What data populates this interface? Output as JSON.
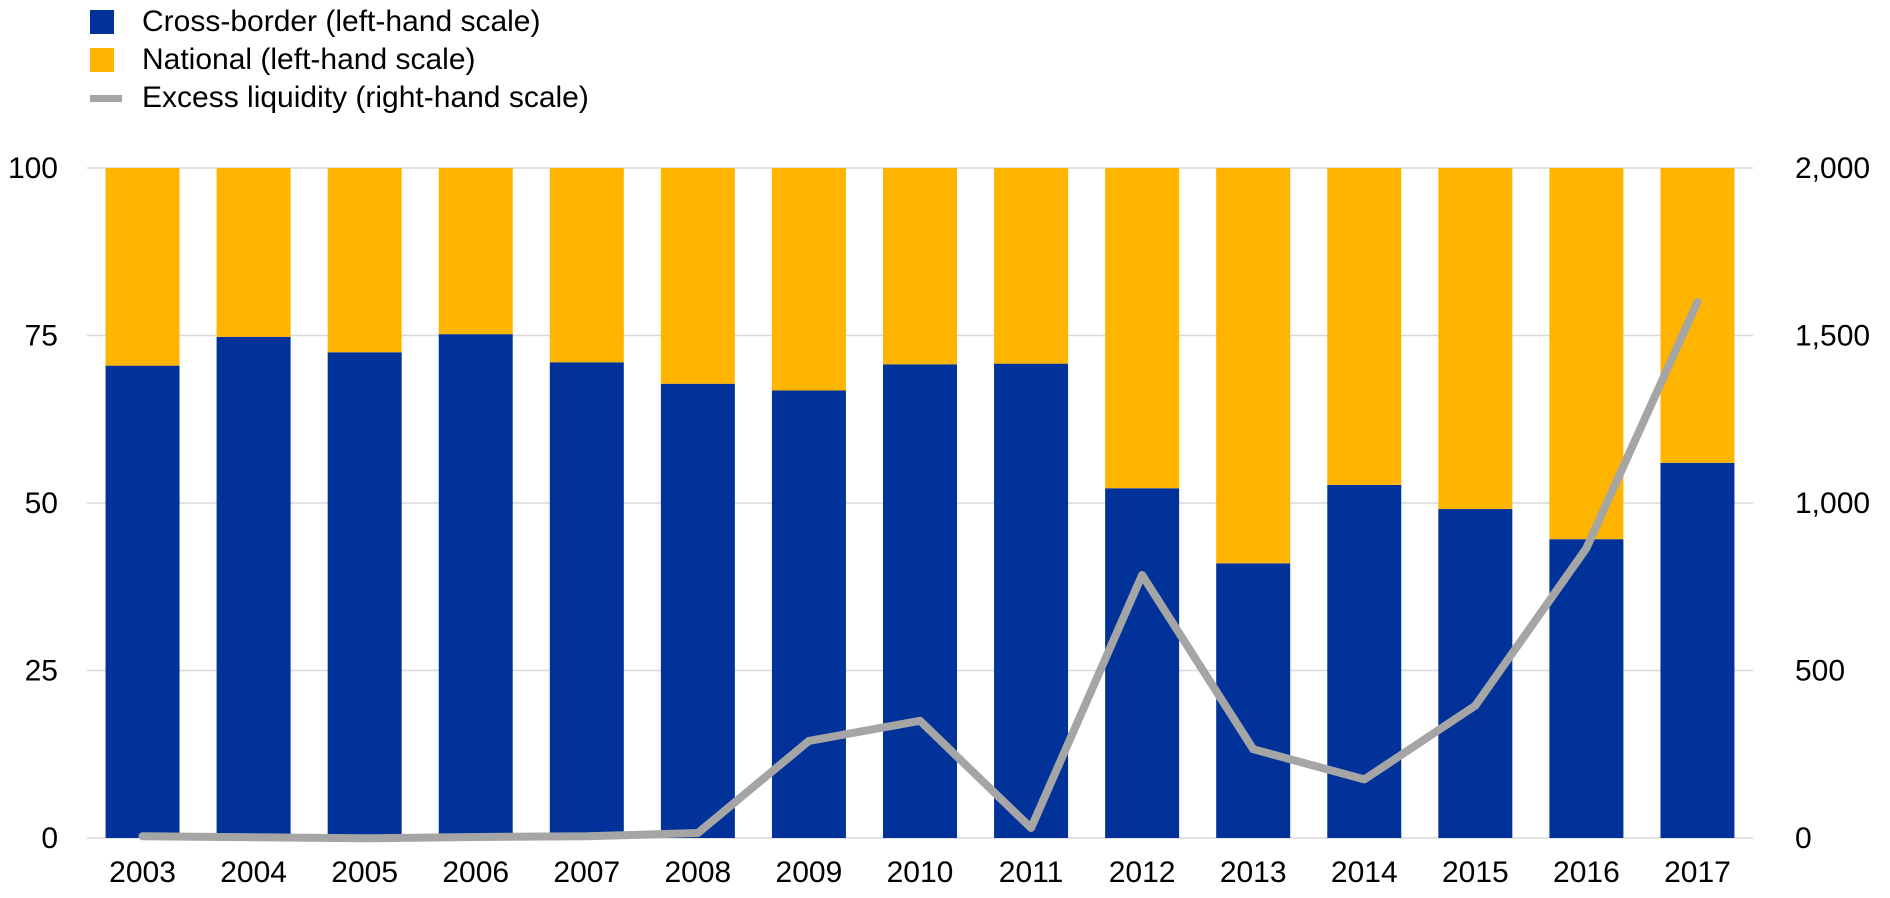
{
  "colors": {
    "cross_border": "#003299",
    "national": "#FFB400",
    "excess_liquidity": "#A5A5A5",
    "gridline": "#D9D9D9"
  },
  "legend": {
    "cross_border": "Cross-border (left-hand scale)",
    "national": "National (left-hand scale)",
    "excess_liquidity": "Excess liquidity (right-hand scale)"
  },
  "chart_data": {
    "type": "bar",
    "stacked": true,
    "title": "",
    "xlabel": "",
    "ylabel": "",
    "categories": [
      "2003",
      "2004",
      "2005",
      "2006",
      "2007",
      "2008",
      "2009",
      "2010",
      "2011",
      "2012",
      "2013",
      "2014",
      "2015",
      "2016",
      "2017"
    ],
    "series": [
      {
        "name": "Cross-border (left-hand scale)",
        "type": "bar",
        "axis": "left",
        "values": [
          70.5,
          74.8,
          72.5,
          75.2,
          71.0,
          67.8,
          66.8,
          70.7,
          70.8,
          52.2,
          41.0,
          52.7,
          49.1,
          44.6,
          56.0
        ]
      },
      {
        "name": "National (left-hand scale)",
        "type": "bar",
        "axis": "left",
        "values": [
          29.5,
          25.2,
          27.5,
          24.8,
          29.0,
          32.2,
          33.2,
          29.3,
          29.2,
          47.8,
          59.0,
          47.3,
          50.9,
          55.4,
          44.0
        ]
      },
      {
        "name": "Excess liquidity (right-hand scale)",
        "type": "line",
        "axis": "right",
        "values": [
          5,
          2,
          -1,
          3,
          5,
          15,
          290,
          350,
          30,
          785,
          265,
          175,
          395,
          865,
          1600
        ]
      }
    ],
    "left_axis": {
      "range": [
        0,
        100
      ],
      "ticks": [
        0,
        25,
        50,
        75,
        100
      ],
      "tick_labels": [
        "0",
        "25",
        "50",
        "75",
        "100"
      ]
    },
    "right_axis": {
      "range": [
        0,
        2000
      ],
      "ticks": [
        0,
        500,
        1000,
        1500,
        2000
      ],
      "tick_labels": [
        "0",
        "500",
        "1,000",
        "1,500",
        "2,000"
      ]
    },
    "legend_position": "top-left",
    "grid": "horizontal"
  }
}
